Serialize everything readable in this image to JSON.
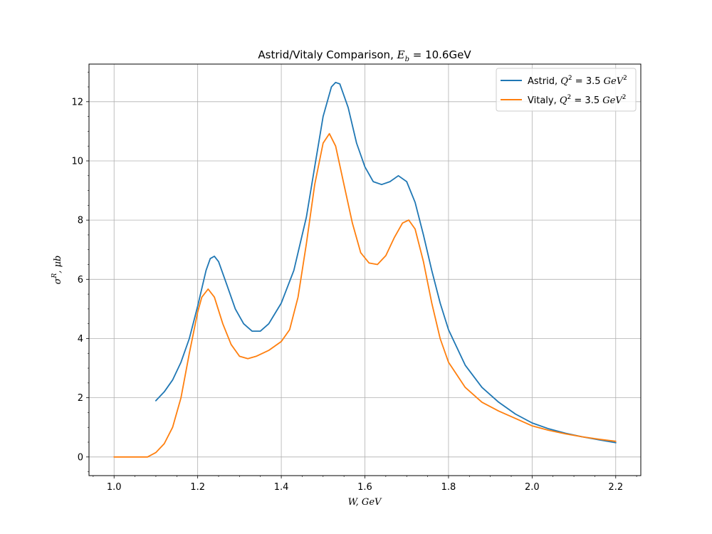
{
  "chart_data": {
    "type": "line",
    "title": "Astrid/Vitaly Comparison, E_b = 10.6GeV",
    "title_parts": {
      "prefix": "Astrid/Vitaly Comparison, ",
      "symbol": "E",
      "subscript": "b",
      "suffix": " = 10.6GeV"
    },
    "xlabel": "W, GeV",
    "ylabel": "σ^R, μb",
    "xlim": [
      0.94,
      2.26
    ],
    "ylim": [
      -0.63,
      13.27
    ],
    "x_ticks": [
      1.0,
      1.2,
      1.4,
      1.6,
      1.8,
      2.0,
      2.2
    ],
    "x_tick_labels": [
      "1.0",
      "1.2",
      "1.4",
      "1.6",
      "1.8",
      "2.0",
      "2.2"
    ],
    "y_ticks": [
      0,
      2,
      4,
      6,
      8,
      10,
      12
    ],
    "y_tick_labels": [
      "0",
      "2",
      "4",
      "6",
      "8",
      "10",
      "12"
    ],
    "grid": true,
    "legend_position": "top-right",
    "series": [
      {
        "name": "Astrid, Q^2 = 3.5 GeV^2",
        "label_parts": {
          "prefix": "Astrid, ",
          "q": "Q",
          "qexp": "2",
          "mid": " = 3.5 ",
          "unit": "GeV",
          "uexp": "2"
        },
        "color": "#1f77b4",
        "points": [
          [
            1.1,
            1.9
          ],
          [
            1.12,
            2.2
          ],
          [
            1.14,
            2.6
          ],
          [
            1.16,
            3.2
          ],
          [
            1.18,
            4.0
          ],
          [
            1.2,
            5.1
          ],
          [
            1.22,
            6.3
          ],
          [
            1.23,
            6.7
          ],
          [
            1.24,
            6.78
          ],
          [
            1.25,
            6.6
          ],
          [
            1.27,
            5.8
          ],
          [
            1.29,
            5.0
          ],
          [
            1.31,
            4.5
          ],
          [
            1.33,
            4.25
          ],
          [
            1.35,
            4.25
          ],
          [
            1.37,
            4.5
          ],
          [
            1.4,
            5.2
          ],
          [
            1.43,
            6.3
          ],
          [
            1.46,
            8.1
          ],
          [
            1.48,
            9.8
          ],
          [
            1.5,
            11.5
          ],
          [
            1.52,
            12.5
          ],
          [
            1.53,
            12.65
          ],
          [
            1.54,
            12.6
          ],
          [
            1.56,
            11.8
          ],
          [
            1.58,
            10.6
          ],
          [
            1.6,
            9.8
          ],
          [
            1.62,
            9.3
          ],
          [
            1.64,
            9.2
          ],
          [
            1.66,
            9.3
          ],
          [
            1.68,
            9.5
          ],
          [
            1.7,
            9.3
          ],
          [
            1.72,
            8.6
          ],
          [
            1.74,
            7.5
          ],
          [
            1.76,
            6.3
          ],
          [
            1.78,
            5.2
          ],
          [
            1.8,
            4.3
          ],
          [
            1.84,
            3.1
          ],
          [
            1.88,
            2.35
          ],
          [
            1.92,
            1.85
          ],
          [
            1.96,
            1.45
          ],
          [
            2.0,
            1.15
          ],
          [
            2.04,
            0.95
          ],
          [
            2.08,
            0.8
          ],
          [
            2.12,
            0.68
          ],
          [
            2.16,
            0.58
          ],
          [
            2.2,
            0.48
          ]
        ]
      },
      {
        "name": "Vitaly, Q^2 = 3.5 GeV^2",
        "label_parts": {
          "prefix": "Vitaly, ",
          "q": "Q",
          "qexp": "2",
          "mid": " = 3.5 ",
          "unit": "GeV",
          "uexp": "2"
        },
        "color": "#ff7f0e",
        "points": [
          [
            1.0,
            0.0
          ],
          [
            1.05,
            0.0
          ],
          [
            1.08,
            0.0
          ],
          [
            1.1,
            0.15
          ],
          [
            1.12,
            0.45
          ],
          [
            1.14,
            1.0
          ],
          [
            1.16,
            2.0
          ],
          [
            1.18,
            3.5
          ],
          [
            1.2,
            4.9
          ],
          [
            1.21,
            5.4
          ],
          [
            1.225,
            5.67
          ],
          [
            1.24,
            5.4
          ],
          [
            1.26,
            4.5
          ],
          [
            1.28,
            3.8
          ],
          [
            1.3,
            3.4
          ],
          [
            1.32,
            3.32
          ],
          [
            1.34,
            3.4
          ],
          [
            1.37,
            3.6
          ],
          [
            1.4,
            3.9
          ],
          [
            1.42,
            4.3
          ],
          [
            1.44,
            5.4
          ],
          [
            1.46,
            7.2
          ],
          [
            1.48,
            9.2
          ],
          [
            1.5,
            10.6
          ],
          [
            1.515,
            10.92
          ],
          [
            1.53,
            10.5
          ],
          [
            1.55,
            9.2
          ],
          [
            1.57,
            7.9
          ],
          [
            1.59,
            6.9
          ],
          [
            1.61,
            6.55
          ],
          [
            1.63,
            6.5
          ],
          [
            1.65,
            6.8
          ],
          [
            1.67,
            7.4
          ],
          [
            1.69,
            7.9
          ],
          [
            1.705,
            8.0
          ],
          [
            1.72,
            7.7
          ],
          [
            1.74,
            6.6
          ],
          [
            1.76,
            5.2
          ],
          [
            1.78,
            4.0
          ],
          [
            1.8,
            3.2
          ],
          [
            1.84,
            2.35
          ],
          [
            1.88,
            1.85
          ],
          [
            1.92,
            1.55
          ],
          [
            1.96,
            1.3
          ],
          [
            2.0,
            1.05
          ],
          [
            2.04,
            0.9
          ],
          [
            2.08,
            0.78
          ],
          [
            2.12,
            0.68
          ],
          [
            2.16,
            0.6
          ],
          [
            2.2,
            0.53
          ]
        ]
      }
    ]
  }
}
